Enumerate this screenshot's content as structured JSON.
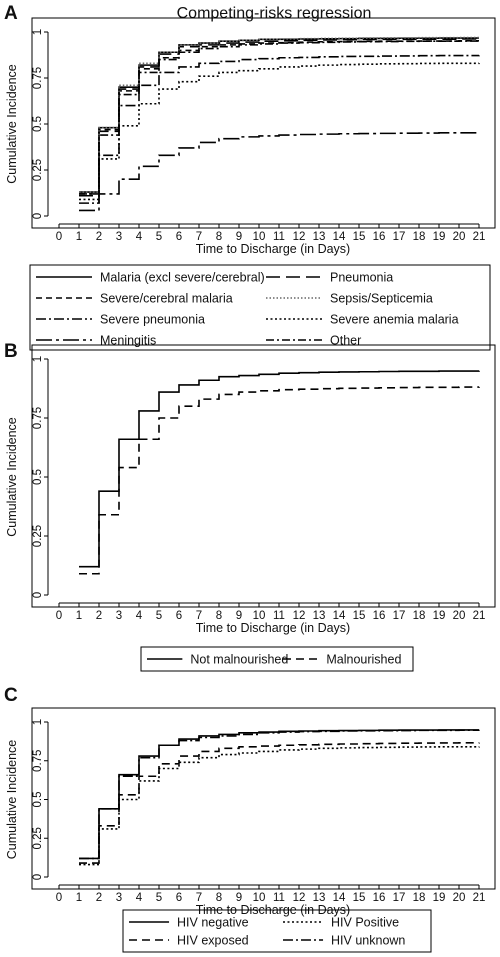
{
  "figure_title": "Competing-risks regression",
  "chart_data": [
    {
      "panel_label": "A",
      "type": "line",
      "step": true,
      "title": "Competing-risks regression",
      "xlabel": "Time to Discharge (in Days)",
      "ylabel": "Cumulative Incidence",
      "xlim": [
        0,
        21
      ],
      "ylim": [
        0,
        1
      ],
      "xticks": [
        0,
        1,
        2,
        3,
        4,
        5,
        6,
        7,
        8,
        9,
        10,
        11,
        12,
        13,
        14,
        15,
        16,
        17,
        18,
        19,
        20,
        21
      ],
      "yticks": [
        0,
        0.25,
        0.5,
        0.75,
        1
      ],
      "ytick_labels": [
        "0",
        "0.25",
        "0.5",
        "0.75",
        "1"
      ],
      "grid": false,
      "legend_position": "bottom",
      "legend_columns": 2,
      "x": [
        1,
        2,
        3,
        4,
        5,
        6,
        7,
        8,
        9,
        10,
        11,
        12,
        13,
        14,
        15,
        16,
        17,
        18,
        19,
        20,
        21
      ],
      "series": [
        {
          "name": "Malaria (excl severe/cerebral)",
          "color": "#000000",
          "dash": "",
          "values": [
            0.13,
            0.48,
            0.7,
            0.82,
            0.89,
            0.93,
            0.94,
            0.95,
            0.955,
            0.96,
            0.96,
            0.962,
            0.963,
            0.964,
            0.965,
            0.965,
            0.966,
            0.966,
            0.967,
            0.967,
            0.967
          ]
        },
        {
          "name": "Pneumonia",
          "color": "#000000",
          "dash": "14,6",
          "values": [
            0.11,
            0.46,
            0.69,
            0.81,
            0.88,
            0.92,
            0.93,
            0.94,
            0.945,
            0.95,
            0.952,
            0.955,
            0.957,
            0.958,
            0.959,
            0.96,
            0.96,
            0.961,
            0.961,
            0.962,
            0.962
          ]
        },
        {
          "name": "Severe/cerebral malaria",
          "color": "#000000",
          "dash": "6,4",
          "values": [
            0.12,
            0.47,
            0.68,
            0.8,
            0.86,
            0.9,
            0.92,
            0.93,
            0.935,
            0.94,
            0.942,
            0.945,
            0.947,
            0.948,
            0.949,
            0.95,
            0.95,
            0.951,
            0.951,
            0.952,
            0.952
          ]
        },
        {
          "name": "Sepsis/Septicemia",
          "color": "#666666",
          "dash": "1.5,2",
          "values": [
            0.13,
            0.48,
            0.71,
            0.83,
            0.89,
            0.93,
            0.94,
            0.95,
            0.955,
            0.96,
            0.962,
            0.964,
            0.965,
            0.966,
            0.967,
            0.968,
            0.968,
            0.969,
            0.969,
            0.97,
            0.97
          ]
        },
        {
          "name": "Severe pneumonia",
          "color": "#000000",
          "dash": "10,3,2,3",
          "values": [
            0.07,
            0.33,
            0.6,
            0.71,
            0.78,
            0.81,
            0.83,
            0.84,
            0.85,
            0.855,
            0.86,
            0.862,
            0.865,
            0.867,
            0.868,
            0.869,
            0.87,
            0.871,
            0.872,
            0.872,
            0.873
          ]
        },
        {
          "name": "Severe anemia malaria",
          "color": "#000000",
          "dash": "2,2.5",
          "values": [
            0.09,
            0.31,
            0.49,
            0.61,
            0.69,
            0.73,
            0.76,
            0.78,
            0.79,
            0.8,
            0.81,
            0.815,
            0.82,
            0.823,
            0.825,
            0.827,
            0.828,
            0.829,
            0.83,
            0.83,
            0.831
          ]
        },
        {
          "name": "Meningitis",
          "color": "#000000",
          "dash": "16,4,3,4",
          "values": [
            0.03,
            0.12,
            0.2,
            0.27,
            0.33,
            0.37,
            0.4,
            0.42,
            0.43,
            0.435,
            0.44,
            0.443,
            0.445,
            0.447,
            0.448,
            0.449,
            0.45,
            0.451,
            0.452,
            0.452,
            0.453
          ]
        },
        {
          "name": "Other",
          "color": "#000000",
          "dash": "8,3,2,3",
          "values": [
            0.12,
            0.44,
            0.66,
            0.78,
            0.85,
            0.89,
            0.91,
            0.92,
            0.93,
            0.935,
            0.94,
            0.942,
            0.944,
            0.946,
            0.947,
            0.948,
            0.949,
            0.95,
            0.95,
            0.951,
            0.951
          ]
        }
      ]
    },
    {
      "panel_label": "B",
      "type": "line",
      "step": true,
      "xlabel": "Time to Discharge (in Days)",
      "ylabel": "Cumulative Incidence",
      "xlim": [
        0,
        21
      ],
      "ylim": [
        0,
        1
      ],
      "xticks": [
        0,
        1,
        2,
        3,
        4,
        5,
        6,
        7,
        8,
        9,
        10,
        11,
        12,
        13,
        14,
        15,
        16,
        17,
        18,
        19,
        20,
        21
      ],
      "yticks": [
        0,
        0.25,
        0.5,
        0.75,
        1
      ],
      "ytick_labels": [
        "0",
        "0.25",
        "0.5",
        "0.75",
        "1"
      ],
      "grid": false,
      "legend_position": "bottom",
      "legend_columns": 2,
      "x": [
        1,
        2,
        3,
        4,
        5,
        6,
        7,
        8,
        9,
        10,
        11,
        12,
        13,
        14,
        15,
        16,
        17,
        18,
        19,
        20,
        21
      ],
      "series": [
        {
          "name": "Not malnourished",
          "color": "#000000",
          "dash": "",
          "values": [
            0.12,
            0.44,
            0.66,
            0.78,
            0.86,
            0.89,
            0.91,
            0.925,
            0.93,
            0.935,
            0.94,
            0.942,
            0.944,
            0.945,
            0.946,
            0.947,
            0.948,
            0.948,
            0.949,
            0.949,
            0.95
          ]
        },
        {
          "name": "Malnourished",
          "color": "#000000",
          "dash": "8,5",
          "values": [
            0.09,
            0.34,
            0.54,
            0.66,
            0.75,
            0.8,
            0.83,
            0.85,
            0.86,
            0.865,
            0.87,
            0.872,
            0.874,
            0.876,
            0.877,
            0.878,
            0.879,
            0.88,
            0.88,
            0.881,
            0.882
          ]
        }
      ]
    },
    {
      "panel_label": "C",
      "type": "line",
      "step": true,
      "xlabel": "Time to Discharge (in Days)",
      "ylabel": "Cumulative Incidence",
      "xlim": [
        0,
        21
      ],
      "ylim": [
        0,
        1
      ],
      "xticks": [
        0,
        1,
        2,
        3,
        4,
        5,
        6,
        7,
        8,
        9,
        10,
        11,
        12,
        13,
        14,
        15,
        16,
        17,
        18,
        19,
        20,
        21
      ],
      "yticks": [
        0,
        0.25,
        0.5,
        0.75,
        1
      ],
      "ytick_labels": [
        "0",
        "0.25",
        "0.5",
        "0.75",
        "1"
      ],
      "grid": false,
      "legend_position": "bottom",
      "legend_columns": 2,
      "x": [
        1,
        2,
        3,
        4,
        5,
        6,
        7,
        8,
        9,
        10,
        11,
        12,
        13,
        14,
        15,
        16,
        17,
        18,
        19,
        20,
        21
      ],
      "series": [
        {
          "name": "HIV negative",
          "color": "#000000",
          "dash": "",
          "values": [
            0.12,
            0.44,
            0.66,
            0.78,
            0.85,
            0.89,
            0.91,
            0.92,
            0.93,
            0.935,
            0.94,
            0.942,
            0.944,
            0.945,
            0.946,
            0.947,
            0.948,
            0.948,
            0.949,
            0.949,
            0.95
          ]
        },
        {
          "name": "HIV Positive",
          "color": "#000000",
          "dash": "2,2.5",
          "values": [
            0.08,
            0.31,
            0.5,
            0.62,
            0.7,
            0.74,
            0.77,
            0.79,
            0.8,
            0.81,
            0.82,
            0.825,
            0.83,
            0.833,
            0.835,
            0.837,
            0.838,
            0.839,
            0.84,
            0.84,
            0.841
          ]
        },
        {
          "name": "HIV exposed",
          "color": "#000000",
          "dash": "8,5",
          "values": [
            0.09,
            0.33,
            0.53,
            0.65,
            0.73,
            0.78,
            0.81,
            0.83,
            0.84,
            0.845,
            0.85,
            0.853,
            0.856,
            0.858,
            0.86,
            0.862,
            0.863,
            0.864,
            0.865,
            0.866,
            0.867
          ]
        },
        {
          "name": "HIV unknown",
          "color": "#000000",
          "dash": "10,3,2,3",
          "values": [
            0.12,
            0.44,
            0.65,
            0.77,
            0.85,
            0.88,
            0.9,
            0.91,
            0.92,
            0.93,
            0.935,
            0.938,
            0.94,
            0.942,
            0.943,
            0.944,
            0.945,
            0.946,
            0.946,
            0.947,
            0.947
          ]
        }
      ]
    }
  ]
}
